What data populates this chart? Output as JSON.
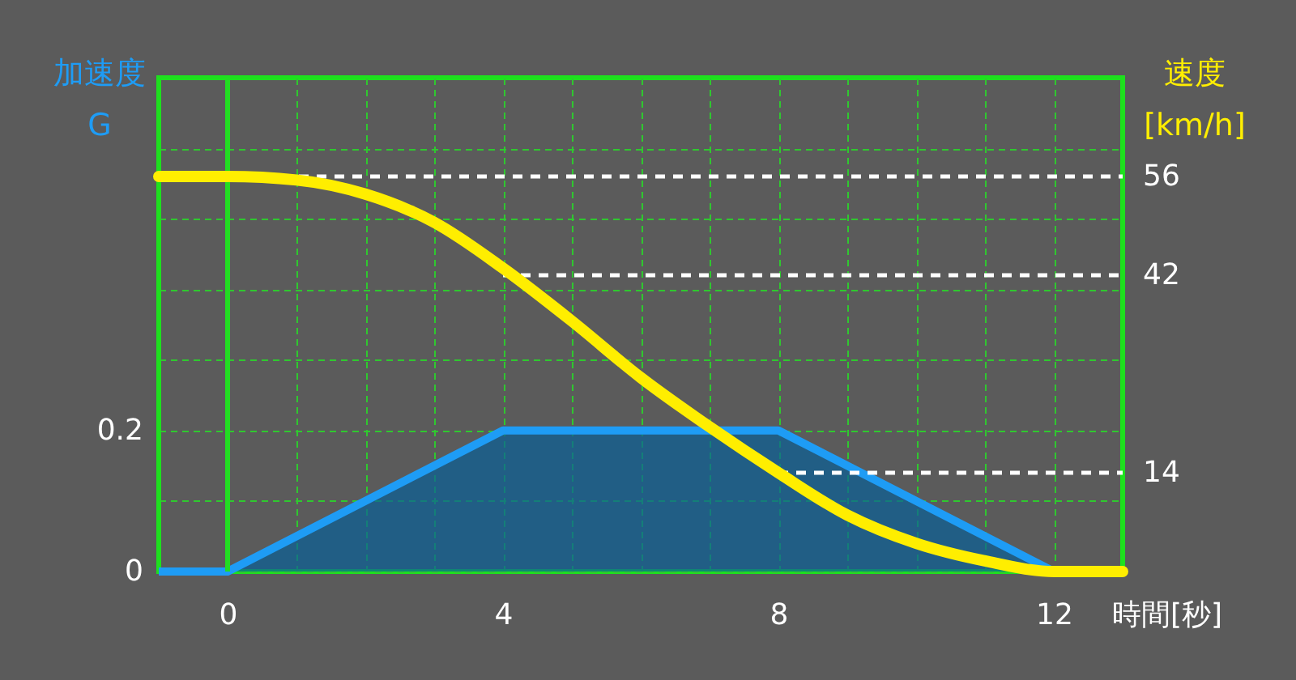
{
  "chart_data": {
    "type": "line",
    "xlabel": "時間[秒]",
    "ylabel": "加速度\nG",
    "y2label": "速度\n[km/h]",
    "xlim": [
      -1,
      13
    ],
    "xticks": [
      0,
      {
        "value": 1,
        "label": null
      },
      {
        "value": 2,
        "label": null
      },
      {
        "value": 3,
        "label": null
      },
      4,
      {
        "value": 5,
        "label": null
      },
      {
        "value": 6,
        "label": null
      },
      {
        "value": 7,
        "label": null
      },
      8,
      {
        "value": 9,
        "label": null
      },
      {
        "value": 10,
        "label": null
      },
      {
        "value": 11,
        "label": null
      },
      12
    ],
    "ylim": [
      0,
      0.7
    ],
    "yticks": [
      0,
      {
        "value": 0.1,
        "label": null
      },
      0.2,
      {
        "value": 0.3,
        "label": null
      },
      {
        "value": 0.4,
        "label": null
      },
      {
        "value": 0.5,
        "label": null
      },
      {
        "value": 0.6,
        "label": null
      }
    ],
    "y2lim": [
      0,
      70
    ],
    "y2ticks": [
      14,
      42,
      56
    ],
    "grid": true,
    "series": [
      {
        "type": "area",
        "color": "#1e9cf5",
        "x": [
          -1,
          0,
          4,
          8,
          12,
          13
        ],
        "values": [
          0,
          0,
          0.2,
          0.2,
          0,
          0
        ]
      },
      {
        "axis": "y2",
        "color": "#ffee00",
        "x": [
          -1,
          0,
          1,
          2,
          3,
          4,
          5,
          6,
          7,
          8,
          9,
          10,
          11,
          12,
          13
        ],
        "values": [
          56,
          56,
          55.5,
          53.5,
          49.5,
          43,
          35.5,
          27.5,
          20.5,
          14,
          8,
          4,
          1.5,
          0,
          0
        ]
      }
    ],
    "ref_lines": [
      {
        "axis": "x",
        "value": 0,
        "color": "#22dd22",
        "line_style": "solid"
      },
      {
        "axis": "y2",
        "value": 56,
        "color": "#ffffff",
        "line_style": "dashed"
      },
      {
        "axis": "y2",
        "value": 42,
        "color": "#ffffff",
        "line_style": "dashed"
      },
      {
        "axis": "y2",
        "value": 14,
        "color": "#ffffff",
        "line_style": "dashed"
      }
    ]
  }
}
